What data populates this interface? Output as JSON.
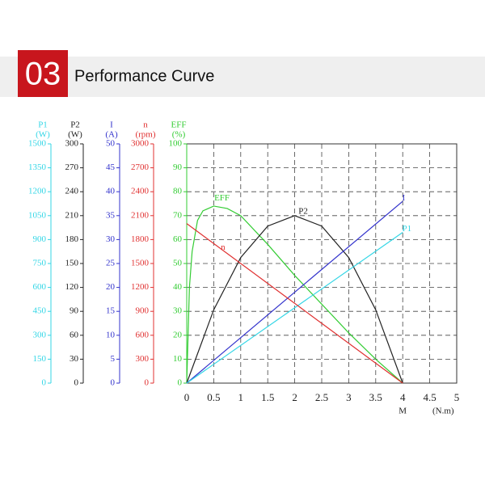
{
  "header": {
    "number": "03",
    "title": "Performance Curve"
  },
  "chart_data": {
    "type": "line",
    "xlim": [
      0,
      5
    ],
    "xticks": [
      0,
      0.5,
      1,
      1.5,
      2,
      2.5,
      3,
      3.5,
      4,
      4.5,
      5
    ],
    "xlabel": "M",
    "xunit": "(N.m)",
    "grid": true,
    "axes": [
      {
        "label": "P1",
        "unit": "(W)",
        "color": "#33d6e6",
        "ylim": [
          0,
          1500
        ],
        "yticks": [
          0,
          150,
          300,
          450,
          600,
          750,
          900,
          1050,
          1200,
          1350,
          1500
        ]
      },
      {
        "label": "P2",
        "unit": "(W)",
        "color": "#222222",
        "ylim": [
          0,
          300
        ],
        "yticks": [
          0,
          30,
          60,
          90,
          120,
          150,
          180,
          210,
          240,
          270,
          300
        ]
      },
      {
        "label": "I",
        "unit": "(A)",
        "color": "#3333cc",
        "ylim": [
          0,
          50
        ],
        "yticks": [
          0,
          5,
          10,
          15,
          20,
          25,
          30,
          35,
          40,
          45,
          50
        ]
      },
      {
        "label": "n",
        "unit": "(rpm)",
        "color": "#e03030",
        "ylim": [
          0,
          3000
        ],
        "yticks": [
          0,
          300,
          600,
          900,
          1200,
          1500,
          1800,
          2100,
          2400,
          2700,
          3000
        ]
      },
      {
        "label": "EFF",
        "unit": "(%)",
        "color": "#33cc33",
        "ylim": [
          0,
          100
        ],
        "yticks": [
          0,
          10,
          20,
          30,
          40,
          50,
          60,
          70,
          80,
          90,
          100
        ]
      }
    ],
    "series": [
      {
        "name": "EFF",
        "color": "#33cc33",
        "axis": 4,
        "x": [
          0,
          0.05,
          0.1,
          0.2,
          0.3,
          0.5,
          0.75,
          1,
          1.5,
          2,
          2.5,
          3,
          3.5,
          4
        ],
        "values": [
          0,
          40,
          55,
          68,
          72,
          74,
          73,
          70,
          58,
          45,
          33,
          21,
          10,
          0
        ]
      },
      {
        "name": "P2",
        "color": "#222222",
        "axis": 1,
        "x": [
          0,
          0.5,
          1,
          1.5,
          2,
          2.5,
          3,
          3.5,
          4
        ],
        "values": [
          0,
          91.9,
          157.5,
          196.9,
          210,
          196.9,
          157.5,
          91.9,
          0
        ]
      },
      {
        "name": "I",
        "color": "#3333cc",
        "axis": 2,
        "x": [
          0,
          4
        ],
        "values": [
          0,
          38
        ]
      },
      {
        "name": "P1",
        "color": "#33d6e6",
        "axis": 0,
        "x": [
          0,
          4
        ],
        "values": [
          0,
          945
        ]
      },
      {
        "name": "n",
        "color": "#e03030",
        "axis": 3,
        "x": [
          0,
          4
        ],
        "values": [
          2000,
          0
        ]
      }
    ]
  }
}
